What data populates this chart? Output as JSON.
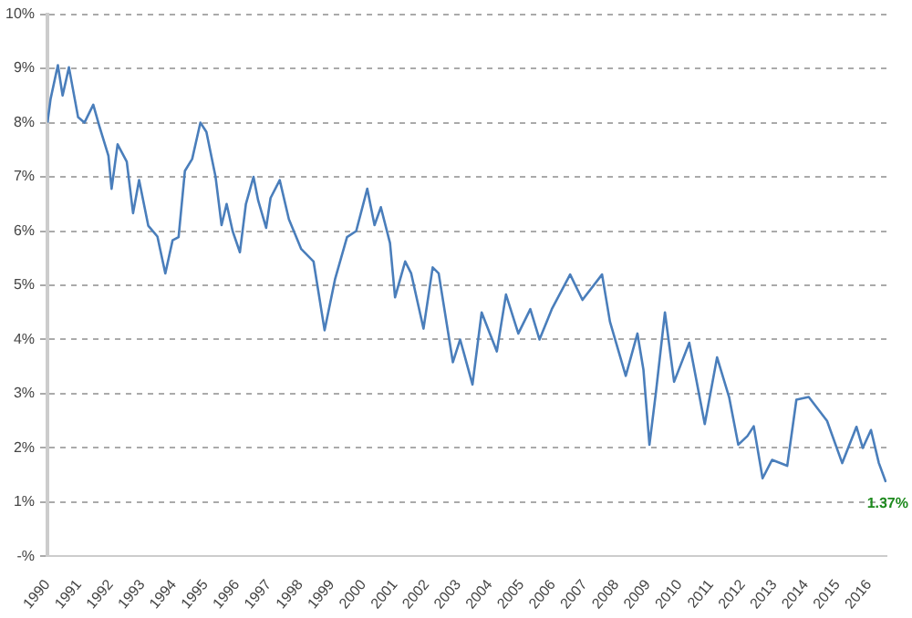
{
  "chart_data": {
    "type": "line",
    "x": [
      1990.0,
      1990.1,
      1990.33,
      1990.48,
      1990.68,
      1990.97,
      1991.17,
      1991.45,
      1991.64,
      1991.93,
      1992.03,
      1992.22,
      1992.51,
      1992.71,
      1992.9,
      1993.19,
      1993.48,
      1993.73,
      1993.96,
      1994.15,
      1994.35,
      1994.58,
      1994.84,
      1995.03,
      1995.32,
      1995.51,
      1995.67,
      1995.86,
      1996.09,
      1996.28,
      1996.52,
      1996.67,
      1996.92,
      1997.06,
      1997.35,
      1997.64,
      1998.03,
      1998.42,
      1998.77,
      1999.1,
      1999.48,
      1999.77,
      2000.12,
      2000.35,
      2000.55,
      2000.84,
      2001.0,
      2001.32,
      2001.51,
      2001.9,
      2002.19,
      2002.38,
      2002.83,
      2003.06,
      2003.45,
      2003.74,
      2004.22,
      2004.51,
      2004.9,
      2005.28,
      2005.57,
      2005.96,
      2006.54,
      2006.93,
      2007.55,
      2007.8,
      2008.3,
      2008.67,
      2008.86,
      2009.05,
      2009.25,
      2009.54,
      2009.83,
      2010.31,
      2010.8,
      2011.19,
      2011.57,
      2011.86,
      2012.15,
      2012.35,
      2012.63,
      2012.93,
      2013.41,
      2013.7,
      2014.09,
      2014.67,
      2015.15,
      2015.6,
      2015.8,
      2016.06,
      2016.31,
      2016.53
    ],
    "series": [
      {
        "color": "#4a7ebb",
        "values": [
          8.0,
          8.44,
          9.06,
          8.5,
          9.02,
          8.1,
          8.0,
          8.33,
          7.94,
          7.39,
          6.78,
          7.6,
          7.28,
          6.33,
          6.94,
          6.1,
          5.9,
          5.22,
          5.83,
          5.89,
          7.11,
          7.33,
          8.0,
          7.83,
          7.0,
          6.11,
          6.5,
          6.0,
          5.61,
          6.5,
          7.0,
          6.56,
          6.06,
          6.61,
          6.94,
          6.22,
          5.67,
          5.44,
          4.17,
          5.11,
          5.89,
          6.0,
          6.78,
          6.11,
          6.44,
          5.78,
          4.78,
          5.44,
          5.22,
          4.2,
          5.33,
          5.22,
          3.58,
          4.0,
          3.17,
          4.5,
          3.78,
          4.83,
          4.11,
          4.56,
          4.0,
          4.56,
          5.2,
          4.73,
          5.2,
          4.33,
          3.33,
          4.11,
          3.44,
          2.06,
          3.0,
          4.5,
          3.22,
          3.94,
          2.44,
          3.67,
          2.94,
          2.06,
          2.22,
          2.4,
          1.44,
          1.78,
          1.67,
          2.89,
          2.94,
          2.5,
          1.72,
          2.39,
          2.0,
          2.33,
          1.72,
          1.37
        ]
      }
    ],
    "xlim": [
      1990,
      2016.55
    ],
    "xticks": [
      1990,
      1991,
      1992,
      1993,
      1994,
      1995,
      1996,
      1997,
      1998,
      1999,
      2000,
      2001,
      2002,
      2003,
      2004,
      2005,
      2006,
      2007,
      2008,
      2009,
      2010,
      2011,
      2012,
      2013,
      2014,
      2015,
      2016
    ],
    "ylim": [
      0,
      10
    ],
    "yticks": [
      {
        "value": 0,
        "label": "-%"
      },
      {
        "value": 1,
        "label": "1%"
      },
      {
        "value": 2,
        "label": "2%"
      },
      {
        "value": 3,
        "label": "3%"
      },
      {
        "value": 4,
        "label": "4%"
      },
      {
        "value": 5,
        "label": "5%"
      },
      {
        "value": 6,
        "label": "6%"
      },
      {
        "value": 7,
        "label": "7%"
      },
      {
        "value": 8,
        "label": "8%"
      },
      {
        "value": 9,
        "label": "9%"
      },
      {
        "value": 10,
        "label": "10%"
      }
    ],
    "grid": "y",
    "marker": "none",
    "line_style": "solid",
    "legend": false,
    "annotations": [
      {
        "text": "1.37%",
        "x": 2016.53,
        "y": 1.37
      }
    ]
  }
}
